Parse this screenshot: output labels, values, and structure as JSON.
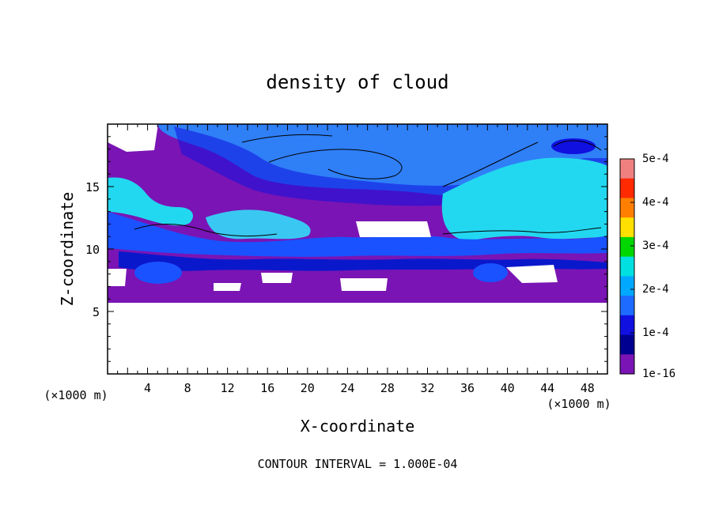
{
  "chart_data": {
    "type": "heatmap",
    "title": "density of cloud",
    "xlabel": "X-coordinate",
    "ylabel": "Z-coordinate",
    "x_unit": "(×1000 m)",
    "x_unit_right": "(×1000 m)",
    "xlim": [
      0,
      50
    ],
    "ylim": [
      0,
      20
    ],
    "x_ticks": [
      4,
      8,
      12,
      16,
      20,
      24,
      28,
      32,
      36,
      40,
      44,
      48
    ],
    "y_ticks": [
      5,
      10,
      15
    ],
    "footer": "CONTOUR INTERVAL = 1.000E-04",
    "colorbar": {
      "labels": [
        "5e-4",
        "4e-4",
        "3e-4",
        "2e-4",
        "1e-4",
        "1e-16"
      ],
      "colors": [
        "#f08080",
        "#ff2a00",
        "#ff7f00",
        "#ffe000",
        "#00d600",
        "#00e0e0",
        "#00a8ff",
        "#1e6cff",
        "#1010e0",
        "#000090",
        "#7a14b4"
      ]
    },
    "cloud_base_z": 5.7,
    "cloud_top_z": 20,
    "bands": [
      {
        "name": "background",
        "color": "#7a14b4"
      },
      {
        "name": "upper-blue",
        "color": "#2f7ff7"
      },
      {
        "name": "cyan-core",
        "color": "#22d8f0"
      },
      {
        "name": "mid-blue",
        "color": "#1a52ff"
      },
      {
        "name": "dark-blue",
        "color": "#0a18cc"
      }
    ],
    "contour_values": [
      0.0001
    ]
  }
}
